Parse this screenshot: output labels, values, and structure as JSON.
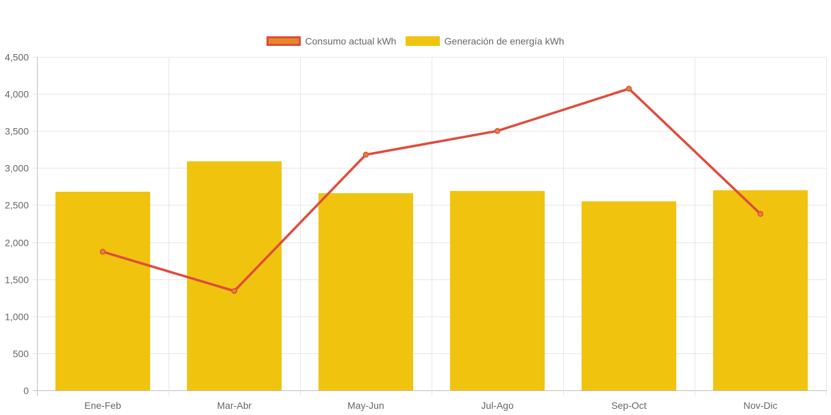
{
  "chart_data": {
    "type": "bar",
    "categories": [
      "Ene-Feb",
      "Mar-Abr",
      "May-Jun",
      "Jul-Ago",
      "Sep-Oct",
      "Nov-Dic"
    ],
    "series": [
      {
        "name": "Consumo actual kWh",
        "type": "line",
        "color": "#e04b3c",
        "point_color": "#e6872a",
        "values": [
          1870,
          1340,
          3180,
          3500,
          4070,
          2380
        ]
      },
      {
        "name": "Generación de energía kWh",
        "type": "bar",
        "color": "#f0c30f",
        "values": [
          2680,
          3090,
          2660,
          2690,
          2550,
          2700
        ]
      }
    ],
    "ylim": [
      0,
      4500
    ],
    "yticks": [
      "0",
      "500",
      "1,000",
      "1,500",
      "2,000",
      "2,500",
      "3,000",
      "3,500",
      "4,000",
      "4,500"
    ],
    "grid": true,
    "legend_position": "top-center",
    "title": "",
    "xlabel": "",
    "ylabel": ""
  }
}
